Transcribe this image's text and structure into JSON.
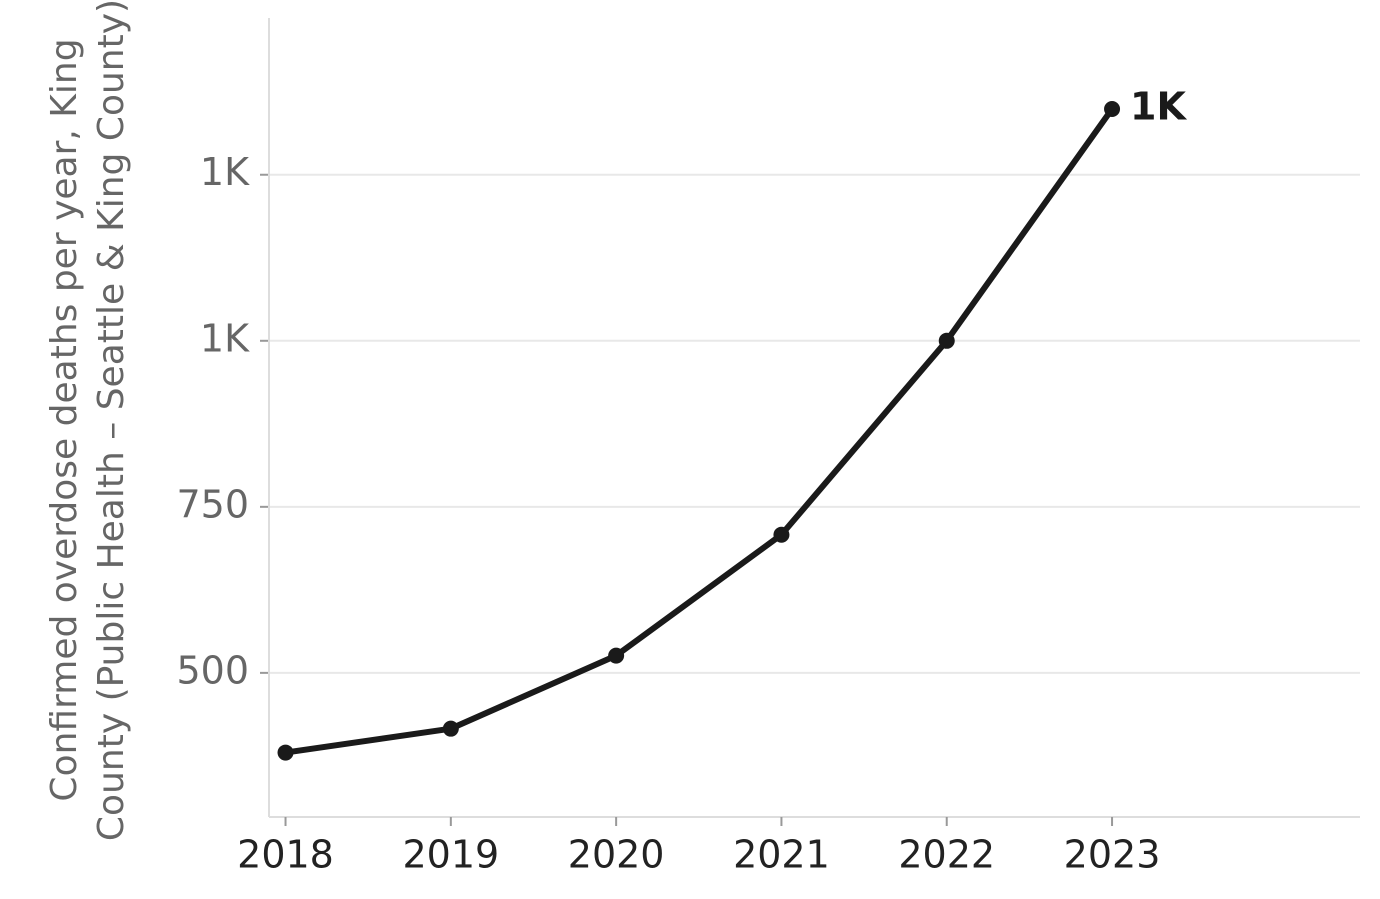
{
  "chart_data": {
    "type": "line",
    "y_label": "Confirmed overdose deaths per year, King County (Public Health – Seattle & King County)",
    "x": [
      2018,
      2019,
      2020,
      2021,
      2022,
      2023
    ],
    "series": [
      {
        "color": "#1a1a1a",
        "values": [
          380,
          416,
          526,
          708,
          1000,
          1349
        ],
        "value_labels": [
          null,
          null,
          null,
          null,
          null,
          "1K"
        ]
      }
    ],
    "xlim": [
      2017.9,
      2024.5
    ],
    "xticks": [
      2018,
      2019,
      2020,
      2021,
      2022,
      2023
    ],
    "ylim": [
      283,
      1486
    ],
    "yticks": [
      500,
      750,
      {
        "value": 1000,
        "label": "1K"
      },
      {
        "value": 1250,
        "label": "1K"
      }
    ],
    "grid": true
  }
}
